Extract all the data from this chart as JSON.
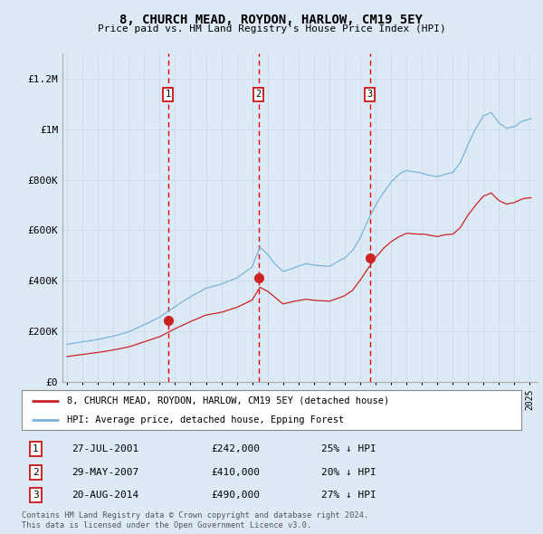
{
  "title": "8, CHURCH MEAD, ROYDON, HARLOW, CM19 5EY",
  "subtitle": "Price paid vs. HM Land Registry's House Price Index (HPI)",
  "legend_line1": "8, CHURCH MEAD, ROYDON, HARLOW, CM19 5EY (detached house)",
  "legend_line2": "HPI: Average price, detached house, Epping Forest",
  "footer": "Contains HM Land Registry data © Crown copyright and database right 2024.\nThis data is licensed under the Open Government Licence v3.0.",
  "transactions": [
    {
      "num": 1,
      "date": "27-JUL-2001",
      "price": 242000,
      "hpi_diff": "25% ↓ HPI",
      "year": 2001.54
    },
    {
      "num": 2,
      "date": "29-MAY-2007",
      "price": 410000,
      "hpi_diff": "20% ↓ HPI",
      "year": 2007.41
    },
    {
      "num": 3,
      "date": "20-AUG-2014",
      "price": 490000,
      "hpi_diff": "27% ↓ HPI",
      "year": 2014.63
    }
  ],
  "hpi_color": "#7ab3d8",
  "price_color": "#cc2222",
  "vline_color": "#dd0000",
  "background_color": "#ddeaf5",
  "ylim": [
    0,
    1300000
  ],
  "yticks": [
    0,
    200000,
    400000,
    600000,
    800000,
    1000000,
    1200000
  ],
  "ytick_labels": [
    "£0",
    "£200K",
    "£400K",
    "£600K",
    "£800K",
    "£1M",
    "£1.2M"
  ],
  "xmin": 1994.7,
  "xmax": 2025.5
}
